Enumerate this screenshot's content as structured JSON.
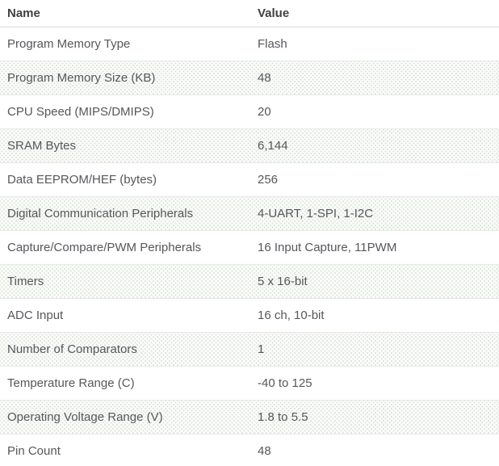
{
  "table": {
    "columns": {
      "name": "Name",
      "value": "Value"
    },
    "rows": [
      {
        "name": "Program Memory Type",
        "value": "Flash"
      },
      {
        "name": "Program Memory Size (KB)",
        "value": "48"
      },
      {
        "name": "CPU Speed (MIPS/DMIPS)",
        "value": "20"
      },
      {
        "name": "SRAM Bytes",
        "value": "6,144"
      },
      {
        "name": "Data EEPROM/HEF (bytes)",
        "value": "256"
      },
      {
        "name": "Digital Communication Peripherals",
        "value": "4-UART, 1-SPI, 1-I2C"
      },
      {
        "name": "Capture/Compare/PWM Peripherals",
        "value": "16 Input Capture, 11PWM"
      },
      {
        "name": "Timers",
        "value": "5 x 16-bit"
      },
      {
        "name": "ADC Input",
        "value": "16 ch, 10-bit"
      },
      {
        "name": "Number of Comparators",
        "value": "1"
      },
      {
        "name": "Temperature Range (C)",
        "value": "-40 to 125"
      },
      {
        "name": "Operating Voltage Range (V)",
        "value": "1.8 to 5.5"
      },
      {
        "name": "Pin Count",
        "value": "48"
      }
    ]
  },
  "colors": {
    "header_text": "#3f4041",
    "body_text": "#55575b",
    "header_border": "#d5dfe1",
    "row_border": "#e8eae9",
    "shaded_row_base": "#fbfcfa",
    "shaded_row_dot": "#dce4dc",
    "background": "#ffffff"
  }
}
